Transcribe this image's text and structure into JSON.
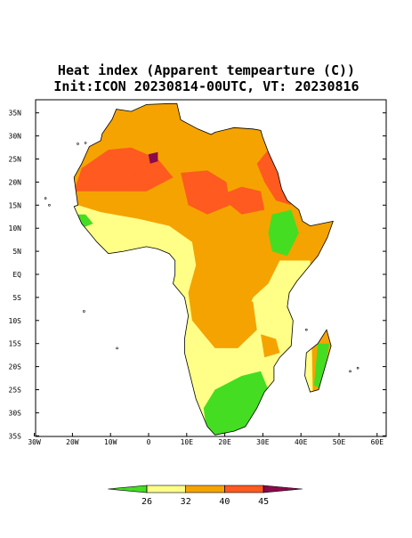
{
  "title": "Heat index (Apparent tempearture (C))",
  "subtitle": "Init:ICON 20230814-00UTC, VT: 20230816",
  "map": {
    "lat_labels": [
      "35N",
      "30N",
      "25N",
      "20N",
      "15N",
      "10N",
      "5N",
      "EQ",
      "5S",
      "10S",
      "15S",
      "20S",
      "25S",
      "30S",
      "35S"
    ],
    "lon_labels": [
      "30W",
      "20W",
      "10W",
      "0",
      "10E",
      "20E",
      "30E",
      "40E",
      "50E",
      "60E"
    ]
  },
  "colorbar": {
    "ticks": [
      26,
      32,
      40,
      45
    ],
    "colors": [
      "#44dd22",
      "#ffff88",
      "#f5a300",
      "#ff5a1f",
      "#8a0a4a"
    ]
  }
}
